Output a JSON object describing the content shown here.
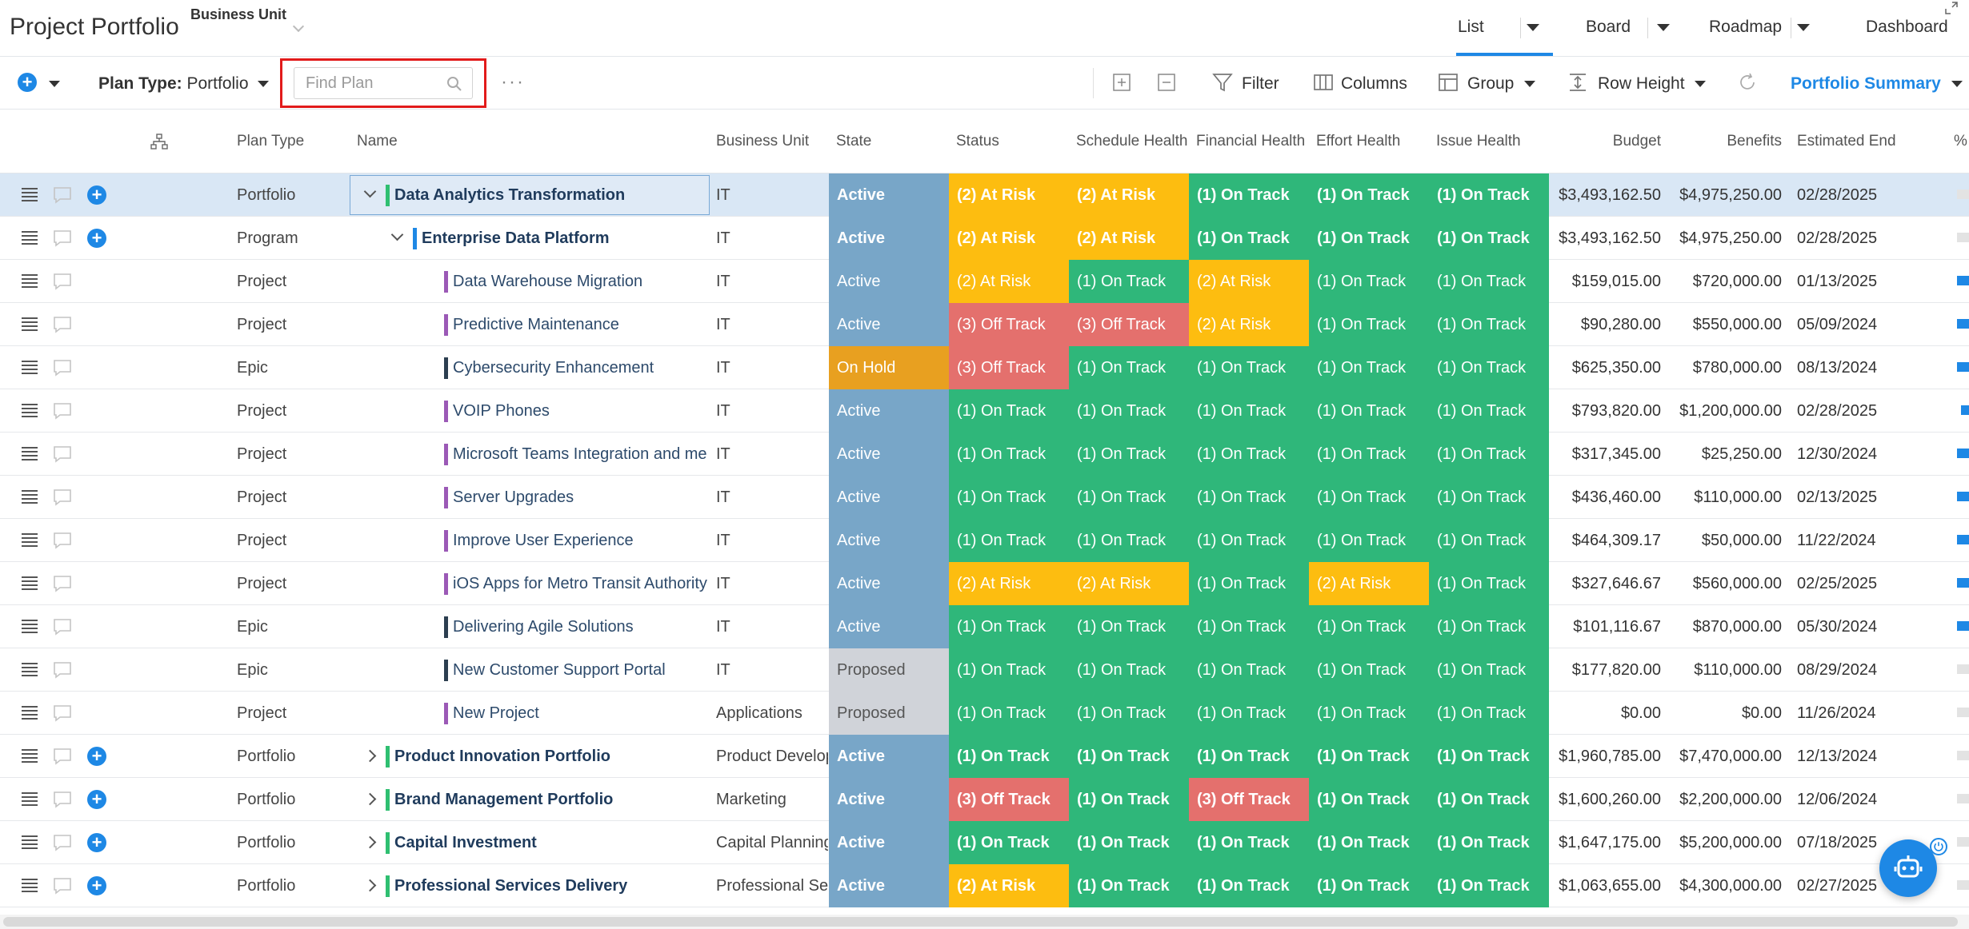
{
  "header": {
    "title": "Project Portfolio",
    "business_unit_label": "Business Unit",
    "views": [
      {
        "label": "List",
        "active": true
      },
      {
        "label": "Board",
        "active": false
      },
      {
        "label": "Roadmap",
        "active": false
      },
      {
        "label": "Dashboard",
        "active": false
      }
    ]
  },
  "toolbar": {
    "plan_type_label": "Plan Type:",
    "plan_type_value": "Portfolio",
    "find_placeholder": "Find Plan",
    "more_label": "···",
    "filter_label": "Filter",
    "columns_label": "Columns",
    "group_label": "Group",
    "row_height_label": "Row Height",
    "summary_label": "Portfolio Summary"
  },
  "columns": {
    "plan_type": "Plan Type",
    "name": "Name",
    "business_unit": "Business Unit",
    "state": "State",
    "status": "Status",
    "schedule_health": "Schedule Health",
    "financial_health": "Financial Health",
    "effort_health": "Effort Health",
    "issue_health": "Issue Health",
    "budget": "Budget",
    "benefits": "Benefits",
    "estimated_end": "Estimated End",
    "percent": "%"
  },
  "colors": {
    "active": "#78a6c8",
    "proposed": "#d0d3d9",
    "on_hold": "#e8a020",
    "on_track": "#2fb77a",
    "at_risk": "#fdbd10",
    "off_track": "#e4706d",
    "accent": "#1e88e5",
    "portfolio_bar": "#2fbf71",
    "program_bar": "#1e88e5",
    "project_bar": "#9b59b6",
    "epic_bar": "#2c3e50"
  },
  "rows": [
    {
      "type": "Portfolio",
      "name": "Data Analytics Transformation",
      "bu": "IT",
      "state": "Active",
      "status": "(2) At Risk",
      "schedule": "(2) At Risk",
      "financial": "(1) On Track",
      "effort": "(1) On Track",
      "issue": "(1) On Track",
      "budget": "$3,493,162.50",
      "benefits": "$4,975,250.00",
      "end": "02/28/2025",
      "level": 0,
      "expand": "open",
      "bold": true,
      "add": true,
      "selected": true,
      "bar": "portfolio",
      "pct": 0
    },
    {
      "type": "Program",
      "name": "Enterprise Data Platform",
      "bu": "IT",
      "state": "Active",
      "status": "(2) At Risk",
      "schedule": "(2) At Risk",
      "financial": "(1) On Track",
      "effort": "(1) On Track",
      "issue": "(1) On Track",
      "budget": "$3,493,162.50",
      "benefits": "$4,975,250.00",
      "end": "02/28/2025",
      "level": 1,
      "expand": "open",
      "bold": true,
      "add": true,
      "selected": false,
      "bar": "program",
      "pct": 0
    },
    {
      "type": "Project",
      "name": "Data Warehouse Migration",
      "bu": "IT",
      "state": "Active",
      "status": "(2) At Risk",
      "schedule": "(1) On Track",
      "financial": "(2) At Risk",
      "effort": "(1) On Track",
      "issue": "(1) On Track",
      "budget": "$159,015.00",
      "benefits": "$720,000.00",
      "end": "01/13/2025",
      "level": 2,
      "expand": "none",
      "bold": false,
      "add": false,
      "selected": false,
      "bar": "project",
      "pct": 0.9
    },
    {
      "type": "Project",
      "name": "Predictive Maintenance",
      "bu": "IT",
      "state": "Active",
      "status": "(3) Off Track",
      "schedule": "(3) Off Track",
      "financial": "(2) At Risk",
      "effort": "(1) On Track",
      "issue": "(1) On Track",
      "budget": "$90,280.00",
      "benefits": "$550,000.00",
      "end": "05/09/2024",
      "level": 2,
      "expand": "none",
      "bold": false,
      "add": false,
      "selected": false,
      "bar": "project",
      "pct": 0.9
    },
    {
      "type": "Epic",
      "name": "Cybersecurity Enhancement",
      "bu": "IT",
      "state": "On Hold",
      "status": "(3) Off Track",
      "schedule": "(1) On Track",
      "financial": "(1) On Track",
      "effort": "(1) On Track",
      "issue": "(1) On Track",
      "budget": "$625,350.00",
      "benefits": "$780,000.00",
      "end": "08/13/2024",
      "level": 2,
      "expand": "none",
      "bold": false,
      "add": false,
      "selected": false,
      "bar": "epic",
      "pct": 0.9
    },
    {
      "type": "Project",
      "name": "VOIP Phones",
      "bu": "IT",
      "state": "Active",
      "status": "(1) On Track",
      "schedule": "(1) On Track",
      "financial": "(1) On Track",
      "effort": "(1) On Track",
      "issue": "(1) On Track",
      "budget": "$793,820.00",
      "benefits": "$1,200,000.00",
      "end": "02/28/2025",
      "level": 2,
      "expand": "none",
      "bold": false,
      "add": false,
      "selected": false,
      "bar": "project",
      "pct": 0.5
    },
    {
      "type": "Project",
      "name": "Microsoft Teams Integration and me",
      "bu": "IT",
      "state": "Active",
      "status": "(1) On Track",
      "schedule": "(1) On Track",
      "financial": "(1) On Track",
      "effort": "(1) On Track",
      "issue": "(1) On Track",
      "budget": "$317,345.00",
      "benefits": "$25,250.00",
      "end": "12/30/2024",
      "level": 2,
      "expand": "none",
      "bold": false,
      "add": false,
      "selected": false,
      "bar": "project",
      "pct": 0.9
    },
    {
      "type": "Project",
      "name": "Server Upgrades",
      "bu": "IT",
      "state": "Active",
      "status": "(1) On Track",
      "schedule": "(1) On Track",
      "financial": "(1) On Track",
      "effort": "(1) On Track",
      "issue": "(1) On Track",
      "budget": "$436,460.00",
      "benefits": "$110,000.00",
      "end": "02/13/2025",
      "level": 2,
      "expand": "none",
      "bold": false,
      "add": false,
      "selected": false,
      "bar": "project",
      "pct": 0.9
    },
    {
      "type": "Project",
      "name": "Improve User Experience",
      "bu": "IT",
      "state": "Active",
      "status": "(1) On Track",
      "schedule": "(1) On Track",
      "financial": "(1) On Track",
      "effort": "(1) On Track",
      "issue": "(1) On Track",
      "budget": "$464,309.17",
      "benefits": "$50,000.00",
      "end": "11/22/2024",
      "level": 2,
      "expand": "none",
      "bold": false,
      "add": false,
      "selected": false,
      "bar": "project",
      "pct": 0.9
    },
    {
      "type": "Project",
      "name": "iOS Apps for Metro Transit Authority",
      "bu": "IT",
      "state": "Active",
      "status": "(2) At Risk",
      "schedule": "(2) At Risk",
      "financial": "(1) On Track",
      "effort": "(2) At Risk",
      "issue": "(1) On Track",
      "budget": "$327,646.67",
      "benefits": "$560,000.00",
      "end": "02/25/2025",
      "level": 2,
      "expand": "none",
      "bold": false,
      "add": false,
      "selected": false,
      "bar": "project",
      "pct": 0.9
    },
    {
      "type": "Epic",
      "name": "Delivering Agile Solutions",
      "bu": "IT",
      "state": "Active",
      "status": "(1) On Track",
      "schedule": "(1) On Track",
      "financial": "(1) On Track",
      "effort": "(1) On Track",
      "issue": "(1) On Track",
      "budget": "$101,116.67",
      "benefits": "$870,000.00",
      "end": "05/30/2024",
      "level": 2,
      "expand": "none",
      "bold": false,
      "add": false,
      "selected": false,
      "bar": "epic",
      "pct": 0.9
    },
    {
      "type": "Epic",
      "name": "New Customer Support Portal",
      "bu": "IT",
      "state": "Proposed",
      "status": "(1) On Track",
      "schedule": "(1) On Track",
      "financial": "(1) On Track",
      "effort": "(1) On Track",
      "issue": "(1) On Track",
      "budget": "$177,820.00",
      "benefits": "$110,000.00",
      "end": "08/29/2024",
      "level": 2,
      "expand": "none",
      "bold": false,
      "add": false,
      "selected": false,
      "bar": "epic",
      "pct": 0
    },
    {
      "type": "Project",
      "name": "New Project",
      "bu": "Applications",
      "state": "Proposed",
      "status": "(1) On Track",
      "schedule": "(1) On Track",
      "financial": "(1) On Track",
      "effort": "(1) On Track",
      "issue": "(1) On Track",
      "budget": "$0.00",
      "benefits": "$0.00",
      "end": "11/26/2024",
      "level": 2,
      "expand": "none",
      "bold": false,
      "add": false,
      "selected": false,
      "bar": "project",
      "pct": 0
    },
    {
      "type": "Portfolio",
      "name": "Product Innovation Portfolio",
      "bu": "Product Develop",
      "state": "Active",
      "status": "(1) On Track",
      "schedule": "(1) On Track",
      "financial": "(1) On Track",
      "effort": "(1) On Track",
      "issue": "(1) On Track",
      "budget": "$1,960,785.00",
      "benefits": "$7,470,000.00",
      "end": "12/13/2024",
      "level": 0,
      "expand": "closed",
      "bold": true,
      "add": true,
      "selected": false,
      "bar": "portfolio",
      "pct": 0
    },
    {
      "type": "Portfolio",
      "name": "Brand Management Portfolio",
      "bu": "Marketing",
      "state": "Active",
      "status": "(3) Off Track",
      "schedule": "(1) On Track",
      "financial": "(3) Off Track",
      "effort": "(1) On Track",
      "issue": "(1) On Track",
      "budget": "$1,600,260.00",
      "benefits": "$2,200,000.00",
      "end": "12/06/2024",
      "level": 0,
      "expand": "closed",
      "bold": true,
      "add": true,
      "selected": false,
      "bar": "portfolio",
      "pct": 0
    },
    {
      "type": "Portfolio",
      "name": "Capital Investment",
      "bu": "Capital Planning",
      "state": "Active",
      "status": "(1) On Track",
      "schedule": "(1) On Track",
      "financial": "(1) On Track",
      "effort": "(1) On Track",
      "issue": "(1) On Track",
      "budget": "$1,647,175.00",
      "benefits": "$5,200,000.00",
      "end": "07/18/2025",
      "level": 0,
      "expand": "closed",
      "bold": true,
      "add": true,
      "selected": false,
      "bar": "portfolio",
      "pct": 0
    },
    {
      "type": "Portfolio",
      "name": "Professional Services Delivery",
      "bu": "Professional Ser",
      "state": "Active",
      "status": "(2) At Risk",
      "schedule": "(1) On Track",
      "financial": "(1) On Track",
      "effort": "(1) On Track",
      "issue": "(1) On Track",
      "budget": "$1,063,655.00",
      "benefits": "$4,300,000.00",
      "end": "02/27/2025",
      "level": 0,
      "expand": "closed",
      "bold": true,
      "add": true,
      "selected": false,
      "bar": "portfolio",
      "pct": 0
    }
  ]
}
